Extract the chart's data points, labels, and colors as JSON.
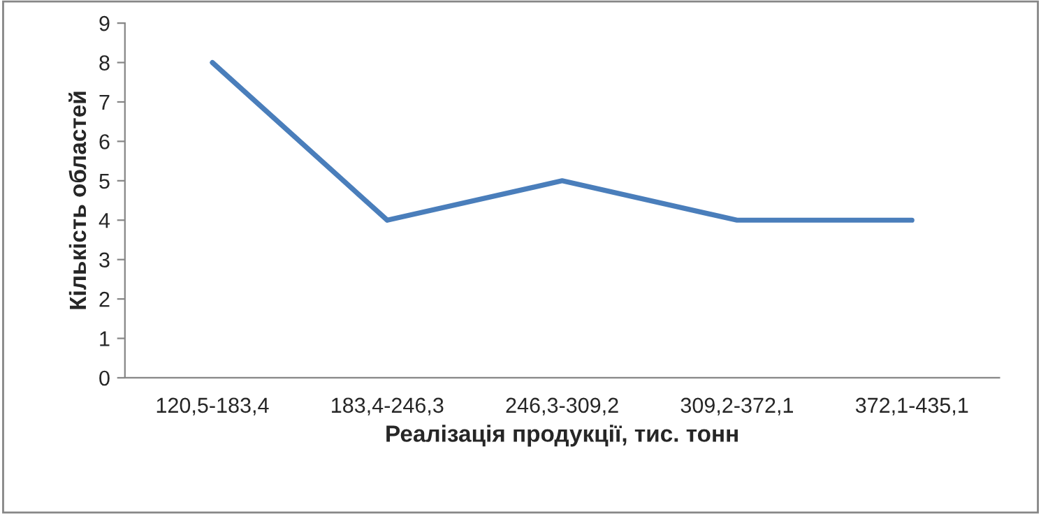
{
  "chart_data": {
    "type": "line",
    "xlabel": "Реалізація продукції, тис. тонн",
    "ylabel": "Кількість областей",
    "categories": [
      "120,5-183,4",
      "183,4-246,3",
      "246,3-309,2",
      "309,2-372,1",
      "372,1-435,1"
    ],
    "series": [
      {
        "color": "#4a7ebb",
        "values": [
          8,
          4,
          5,
          4,
          4
        ]
      }
    ],
    "ylim": [
      0,
      9
    ],
    "yticks": [
      0,
      1,
      2,
      3,
      4,
      5,
      6,
      7,
      8,
      9
    ],
    "grid": false,
    "marker": "none",
    "line_style": "solid"
  }
}
